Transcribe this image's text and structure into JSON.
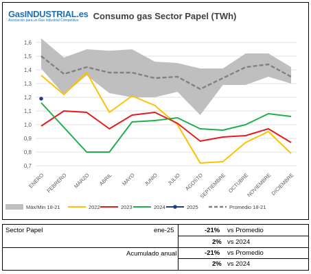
{
  "logo": {
    "text": "GasINDUSTRIAL.es",
    "tagline": "Asociación para un Gas Industrial Competitivo"
  },
  "chart_data": {
    "type": "line",
    "title": "Consumo gas Sector Papel (TWh)",
    "categories": [
      "ENERO",
      "FEBRERO",
      "MARZO",
      "ABRIL",
      "MAYO",
      "JUNIO",
      "JULIO",
      "AGOSTO",
      "SEPTIEMBRE",
      "OCTUBRE",
      "NOVIEMBRE",
      "DICIEMBRE"
    ],
    "yticks": [
      "0,7",
      "0,8",
      "0,9",
      "1,0",
      "1,1",
      "1,2",
      "1,3",
      "1,4",
      "1,5",
      "1,6"
    ],
    "ylim": [
      0.7,
      1.65
    ],
    "grid": true,
    "legend_position": "bottom",
    "range": {
      "name": "Máx/Min 18-21",
      "max": [
        1.63,
        1.49,
        1.55,
        1.54,
        1.55,
        1.46,
        1.45,
        1.41,
        1.41,
        1.52,
        1.52,
        1.42
      ],
      "min": [
        1.41,
        1.22,
        1.36,
        1.23,
        1.2,
        1.2,
        1.24,
        1.07,
        1.29,
        1.29,
        1.35,
        1.3
      ],
      "color": "#bfbfbf"
    },
    "series": [
      {
        "name": "2022",
        "color": "#ffc000",
        "values": [
          1.36,
          1.22,
          1.38,
          1.09,
          1.21,
          1.14,
          1.0,
          0.72,
          0.73,
          0.87,
          0.95,
          0.79
        ]
      },
      {
        "name": "2023",
        "color": "#e41a1c",
        "values": [
          0.99,
          1.1,
          1.09,
          0.97,
          1.07,
          1.09,
          1.01,
          0.88,
          0.91,
          0.92,
          0.97,
          0.87
        ]
      },
      {
        "name": "2024",
        "color": "#1fae4b",
        "values": [
          1.16,
          0.98,
          0.8,
          0.8,
          1.02,
          1.03,
          1.05,
          0.97,
          0.96,
          1.0,
          1.08,
          1.06
        ]
      },
      {
        "name": "2025",
        "color": "#1f3c88",
        "values": [
          1.19,
          null,
          null,
          null,
          null,
          null,
          null,
          null,
          null,
          null,
          null,
          null
        ]
      },
      {
        "name": "Promedio 18-21",
        "color": "#808080",
        "dashed": true,
        "values": [
          1.5,
          1.37,
          1.42,
          1.38,
          1.38,
          1.34,
          1.35,
          1.26,
          1.34,
          1.42,
          1.44,
          1.35
        ]
      }
    ]
  },
  "summary": {
    "sector": "Sector Papel",
    "period": "ene-25",
    "acumulado": "Acumulado anual",
    "rows": [
      {
        "pct": "-21%",
        "label": "vs Promedio"
      },
      {
        "pct": "2%",
        "label": "vs 2024"
      },
      {
        "pct": "-21%",
        "label": "vs Promedio"
      },
      {
        "pct": "2%",
        "label": "vs 2024"
      }
    ]
  }
}
